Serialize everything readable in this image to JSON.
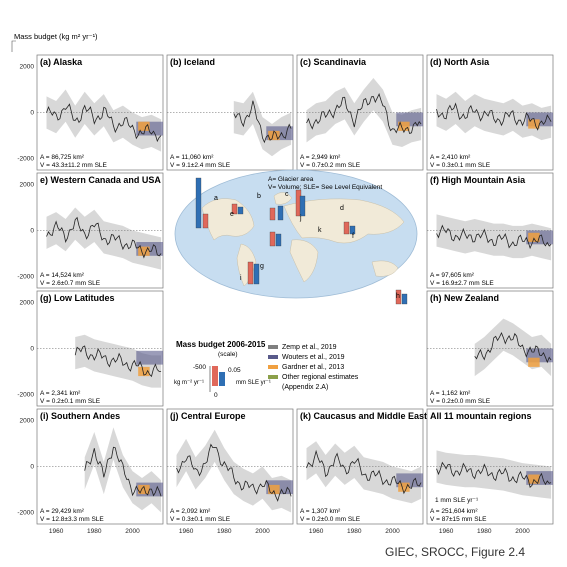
{
  "figure": {
    "ylabel": "Mass budget (kg m² yr⁻¹)",
    "credit": "GIEC, SROCC, Figure 2.4"
  },
  "colors": {
    "zemp": "#7f7f7f",
    "wouters": "#595a8a",
    "gardner": "#f0a040",
    "other": "#8ca04a",
    "land": "#f1ead8",
    "ocean": "#c7ddf0",
    "bar_red": "#e0685a",
    "bar_blue": "#2f6fb4"
  },
  "ticks": {
    "y": [
      "2000",
      "0",
      "-2000"
    ],
    "x": [
      "1960",
      "1980",
      "2000"
    ]
  },
  "map": {
    "glacier_note": "A= Glacier area",
    "volume_note": "V= Volume; SLE= See Level Equivalent",
    "region_letters": [
      "a",
      "b",
      "c",
      "d",
      "e",
      "f",
      "g",
      "h",
      "i",
      "j",
      "k"
    ]
  },
  "legend": {
    "title": "Mass budget 2006-2015",
    "subtitle": "(scale)",
    "scale_top": "-500",
    "scale_zero": "0",
    "scale_right": "0.05",
    "unit_left": "kg m⁻² yr⁻¹",
    "unit_right": "mm SLE yr⁻¹",
    "entries": [
      {
        "label": "Zemp et al., 2019"
      },
      {
        "label": "Wouters et al., 2019"
      },
      {
        "label": "Gardner et al., 2013"
      },
      {
        "label": "Other regional estimates"
      },
      {
        "label": "(Appendix 2.A)"
      }
    ]
  },
  "chart_data": {
    "type": "line",
    "xlim": [
      1950,
      2016
    ],
    "ylim": [
      -2500,
      2500
    ],
    "panels": [
      {
        "id": "alaska",
        "title": "(a) Alaska",
        "area": "A = 86,725 km²",
        "volume": "V = 43.3±11.2 mm SLE",
        "x": [
          1955,
          1960,
          1965,
          1970,
          1975,
          1980,
          1985,
          1990,
          1995,
          2000,
          2005,
          2010,
          2015
        ],
        "y": [
          0,
          -200,
          300,
          -400,
          200,
          -300,
          100,
          -600,
          -400,
          -700,
          -900,
          -800,
          -1000
        ],
        "wouters": {
          "range": [
            2002,
            2016
          ],
          "value": -700
        },
        "gardner": {
          "range": [
            2003,
            2009
          ],
          "value": -600
        }
      },
      {
        "id": "iceland",
        "title": "(b) Iceland",
        "area": "A = 11,060 km²",
        "volume": "V = 9.1±2.4 mm SLE",
        "x": [
          1985,
          1990,
          1995,
          2000,
          2005,
          2010,
          2015
        ],
        "y": [
          -200,
          -300,
          200,
          -900,
          -1200,
          -900,
          -700
        ],
        "wouters": {
          "range": [
            2002,
            2016
          ],
          "value": -900
        },
        "gardner": {
          "range": [
            2003,
            2009
          ],
          "value": -1000
        }
      },
      {
        "id": "scandinavia",
        "title": "(c) Scandinavia",
        "area": "A = 2,949 km²",
        "volume": "V = 0.7±0.2 mm SLE",
        "x": [
          1955,
          1960,
          1965,
          1970,
          1975,
          1980,
          1985,
          1990,
          1995,
          2000,
          2005,
          2010,
          2015
        ],
        "y": [
          -600,
          -300,
          -200,
          200,
          400,
          -300,
          300,
          800,
          300,
          -700,
          -800,
          -600,
          -500
        ],
        "wouters": {
          "range": [
            2002,
            2016
          ],
          "value": -300
        },
        "gardner": {
          "range": [
            2003,
            2009
          ],
          "value": -600
        }
      },
      {
        "id": "north-asia",
        "title": "(d) North Asia",
        "area": "A = 2,410 km²",
        "volume": "V = 0.3±0.1 mm SLE",
        "x": [
          1955,
          1960,
          1965,
          1970,
          1975,
          1980,
          1985,
          1990,
          1995,
          2000,
          2005,
          2010,
          2015
        ],
        "y": [
          100,
          -100,
          200,
          -200,
          100,
          -100,
          -200,
          -300,
          -100,
          -400,
          -300,
          -500,
          -400
        ],
        "wouters": {
          "range": [
            2002,
            2016
          ],
          "value": -300
        },
        "gardner": {
          "range": [
            2003,
            2009
          ],
          "value": -500
        }
      },
      {
        "id": "western-canada",
        "title": "e) Western Canada and USA",
        "area": "A = 14,524 km²",
        "volume": "V = 2.6±0.7 mm SLE",
        "x": [
          1955,
          1960,
          1965,
          1970,
          1975,
          1980,
          1985,
          1990,
          1995,
          2000,
          2005,
          2010,
          2015
        ],
        "y": [
          -100,
          100,
          -200,
          300,
          -100,
          200,
          -300,
          -400,
          -500,
          -700,
          -800,
          -900,
          -1000
        ],
        "wouters": {
          "range": [
            2002,
            2016
          ],
          "value": -800
        },
        "gardner": {
          "range": [
            2003,
            2009
          ],
          "value": -900
        }
      },
      {
        "id": "high-mountain-asia",
        "title": "(f) High Mountain Asia",
        "area": "A = 97,605 km²",
        "volume": "V = 16.9±2.7 mm SLE",
        "x": [
          1955,
          1960,
          1965,
          1970,
          1975,
          1980,
          1985,
          1990,
          1995,
          2000,
          2005,
          2010,
          2015
        ],
        "y": [
          0,
          -100,
          -200,
          -300,
          -200,
          -300,
          -400,
          -400,
          -500,
          -500,
          -400,
          -500,
          -600
        ],
        "wouters": {
          "range": [
            2002,
            2016
          ],
          "value": -300
        },
        "gardner": {
          "range": [
            2003,
            2009
          ],
          "value": -300
        }
      },
      {
        "id": "low-latitudes",
        "title": "(g) Low Latitudes",
        "area": "A = 2,341 km²",
        "volume": "V = 0.2±0.1 mm SLE",
        "x": [
          1970,
          1975,
          1980,
          1985,
          1990,
          1995,
          2000,
          2005,
          2010,
          2015
        ],
        "y": [
          -200,
          -100,
          -300,
          -400,
          -500,
          -600,
          -700,
          -900,
          -1000,
          -1000
        ],
        "wouters": {
          "range": [
            2002,
            2016
          ],
          "value": -400
        },
        "gardner": {
          "range": [
            2003,
            2009
          ],
          "value": -1000
        }
      },
      {
        "id": "new-zealand",
        "title": "(h) New Zealand",
        "area": "A = 1,162 km²",
        "volume": "V = 0.2±0.0 mm SLE",
        "x": [
          1975,
          1980,
          1985,
          1990,
          1995,
          2000,
          2005,
          2010,
          2015
        ],
        "y": [
          -500,
          -200,
          200,
          600,
          400,
          100,
          -200,
          -100,
          -500
        ],
        "wouters": {
          "range": [
            2002,
            2016
          ],
          "value": -300
        },
        "gardner": {
          "range": [
            2003,
            2009
          ],
          "value": -600
        }
      },
      {
        "id": "southern-andes",
        "title": "(i) Southern Andes",
        "area": "A = 29,429 km²",
        "volume": "V = 12.8±3.3 mm SLE",
        "x": [
          1975,
          1980,
          1985,
          1990,
          1995,
          2000,
          2005,
          2010,
          2015
        ],
        "y": [
          -300,
          800,
          -500,
          1000,
          -200,
          -900,
          -1200,
          -900,
          -1300
        ],
        "wouters": {
          "range": [
            2002,
            2016
          ],
          "value": -1000
        },
        "gardner": {
          "range": [
            2003,
            2009
          ],
          "value": -1000
        }
      },
      {
        "id": "central-europe",
        "title": "(j) Central Europe",
        "area": "A = 2,092 km²",
        "volume": "V = 0.3±0.1 mm SLE",
        "x": [
          1955,
          1960,
          1965,
          1970,
          1975,
          1980,
          1985,
          1990,
          1995,
          2000,
          2005,
          2010,
          2015
        ],
        "y": [
          -200,
          500,
          -300,
          200,
          900,
          100,
          -500,
          -800,
          -1000,
          -700,
          -1200,
          -1100,
          -1300
        ],
        "wouters": {
          "range": [
            2002,
            2016
          ],
          "value": -900
        },
        "gardner": {
          "range": [
            2003,
            2009
          ],
          "value": -1000
        }
      },
      {
        "id": "caucasus",
        "title": "(k) Caucasus and Middle East",
        "area": "A = 1,307 km²",
        "volume": "V = 0.2±0.0 mm SLE",
        "x": [
          1955,
          1960,
          1965,
          1970,
          1975,
          1980,
          1985,
          1990,
          1995,
          2000,
          2005,
          2010,
          2015
        ],
        "y": [
          100,
          400,
          -200,
          300,
          -100,
          200,
          -300,
          -400,
          -500,
          -700,
          -800,
          -900,
          -700
        ],
        "wouters": {
          "range": [
            2002,
            2016
          ],
          "value": -600
        },
        "gardner": {
          "range": [
            2003,
            2009
          ],
          "value": -900
        }
      },
      {
        "id": "all-regions",
        "title": "All 11 mountain regions",
        "area": "A = 251,604 km²",
        "volume": "V = 87±15 mm SLE",
        "x": [
          1955,
          1960,
          1965,
          1970,
          1975,
          1980,
          1985,
          1990,
          1995,
          2000,
          2005,
          2010,
          2015
        ],
        "y": [
          0,
          -100,
          -150,
          -200,
          -200,
          -250,
          -300,
          -350,
          -450,
          -550,
          -600,
          -650,
          -700
        ],
        "wouters": {
          "range": [
            2002,
            2016
          ],
          "value": -500
        },
        "gardner": {
          "range": [
            2003,
            2009
          ],
          "value": -550
        },
        "note": "1 mm SLE yr⁻¹"
      }
    ]
  }
}
